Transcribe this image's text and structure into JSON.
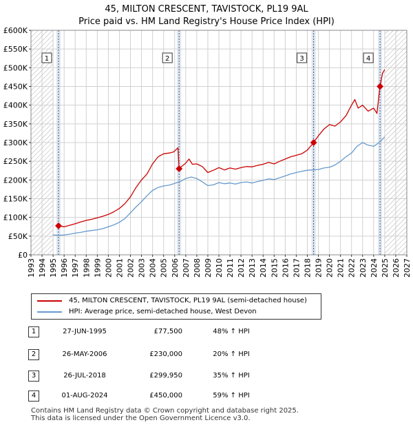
{
  "header": {
    "title_line1": "45, MILTON CRESCENT, TAVISTOCK, PL19 9AL",
    "title_line2": "Price paid vs. HM Land Registry's House Price Index (HPI)"
  },
  "legend": {
    "red_label": "45, MILTON CRESCENT, TAVISTOCK, PL19 9AL (semi-detached house)",
    "blue_label": "HPI: Average price, semi-detached house, West Devon"
  },
  "colors": {
    "red": "#cc0000",
    "blue": "#6699cc",
    "sale_shade": "#dde6f4",
    "grid": "#d0d0d0",
    "hatch": "#aaaaaa"
  },
  "sales": [
    {
      "num": "1",
      "date": "27-JUN-1995",
      "price": "£77,500",
      "hpi": "48% ↑ HPI",
      "t": 1995.49,
      "value": 77500
    },
    {
      "num": "2",
      "date": "26-MAY-2006",
      "price": "£230,000",
      "hpi": "20% ↑ HPI",
      "t": 2006.4,
      "value": 230000
    },
    {
      "num": "3",
      "date": "26-JUL-2018",
      "price": "£299,950",
      "hpi": "35% ↑ HPI",
      "t": 2018.57,
      "value": 299950
    },
    {
      "num": "4",
      "date": "01-AUG-2024",
      "price": "£450,000",
      "hpi": "59% ↑ HPI",
      "t": 2024.58,
      "value": 450000
    }
  ],
  "footer": {
    "line1": "Contains HM Land Registry data © Crown copyright and database right 2025.",
    "line2": "This data is licensed under the Open Government Licence v3.0."
  },
  "chart_data": {
    "type": "line",
    "title": "45, MILTON CRESCENT, TAVISTOCK, PL19 9AL",
    "subtitle": "Price paid vs. HM Land Registry's House Price Index (HPI)",
    "xlim": [
      1993,
      2027
    ],
    "ylim": [
      0,
      600000
    ],
    "x_ticks": [
      "1993",
      "1994",
      "1995",
      "1996",
      "1997",
      "1998",
      "1999",
      "2000",
      "2001",
      "2002",
      "2003",
      "2004",
      "2005",
      "2006",
      "2007",
      "2008",
      "2009",
      "2010",
      "2011",
      "2012",
      "2013",
      "2014",
      "2015",
      "2016",
      "2017",
      "2018",
      "2019",
      "2020",
      "2021",
      "2022",
      "2023",
      "2024",
      "2025",
      "2026",
      "2027"
    ],
    "y_ticks": [
      0,
      50000,
      100000,
      150000,
      200000,
      250000,
      300000,
      350000,
      400000,
      450000,
      500000,
      550000,
      600000
    ],
    "y_tick_labels": [
      "£0",
      "£50K",
      "£100K",
      "£150K",
      "£200K",
      "£250K",
      "£300K",
      "£350K",
      "£400K",
      "£450K",
      "£500K",
      "£550K",
      "£600K"
    ],
    "hatched_before": 1995.0,
    "hatched_after": 2025.0,
    "series": [
      {
        "name": "45, MILTON CRESCENT, TAVISTOCK, PL19 9AL (semi-detached house)",
        "color": "#cc0000",
        "x": [
          1995.49,
          1996.0,
          1996.5,
          1997.0,
          1997.5,
          1998.0,
          1998.5,
          1999.0,
          1999.5,
          2000.0,
          2000.5,
          2001.0,
          2001.5,
          2002.0,
          2002.5,
          2003.0,
          2003.5,
          2004.0,
          2004.5,
          2005.0,
          2005.5,
          2005.9,
          2006.3,
          2006.4,
          2006.5,
          2007.0,
          2007.3,
          2007.6,
          2008.0,
          2008.5,
          2009.0,
          2009.5,
          2010.0,
          2010.5,
          2011.0,
          2011.5,
          2012.0,
          2012.5,
          2013.0,
          2013.5,
          2014.0,
          2014.5,
          2015.0,
          2015.5,
          2016.0,
          2016.5,
          2017.0,
          2017.5,
          2018.0,
          2018.57,
          2019.0,
          2019.5,
          2020.0,
          2020.5,
          2021.0,
          2021.5,
          2022.0,
          2022.3,
          2022.6,
          2023.0,
          2023.5,
          2024.0,
          2024.3,
          2024.58,
          2024.8,
          2025.0
        ],
        "values": [
          77500,
          75000,
          79000,
          83000,
          88000,
          92000,
          95000,
          99000,
          103000,
          108000,
          115000,
          124000,
          137000,
          155000,
          180000,
          200000,
          216000,
          243000,
          262000,
          270000,
          272000,
          275000,
          286000,
          230000,
          233000,
          245000,
          256000,
          242000,
          243000,
          236000,
          220000,
          226000,
          233000,
          227000,
          232000,
          229000,
          233000,
          236000,
          235000,
          239000,
          242000,
          247000,
          243000,
          250000,
          256000,
          262000,
          266000,
          270000,
          280000,
          299950,
          318000,
          336000,
          348000,
          344000,
          355000,
          372000,
          400000,
          415000,
          392000,
          400000,
          384000,
          392000,
          378000,
          450000,
          485000,
          495000
        ]
      },
      {
        "name": "HPI: Average price, semi-detached house, West Devon",
        "color": "#6699cc",
        "x": [
          1995.0,
          1995.5,
          1996.0,
          1996.5,
          1997.0,
          1997.5,
          1998.0,
          1998.5,
          1999.0,
          1999.5,
          2000.0,
          2000.5,
          2001.0,
          2001.5,
          2002.0,
          2002.5,
          2003.0,
          2003.5,
          2004.0,
          2004.5,
          2005.0,
          2005.5,
          2006.0,
          2006.5,
          2007.0,
          2007.5,
          2008.0,
          2008.5,
          2009.0,
          2009.5,
          2010.0,
          2010.5,
          2011.0,
          2011.5,
          2012.0,
          2012.5,
          2013.0,
          2013.5,
          2014.0,
          2014.5,
          2015.0,
          2015.5,
          2016.0,
          2016.5,
          2017.0,
          2017.5,
          2018.0,
          2018.5,
          2019.0,
          2019.5,
          2020.0,
          2020.5,
          2021.0,
          2021.5,
          2022.0,
          2022.5,
          2023.0,
          2023.5,
          2024.0,
          2024.5,
          2025.0
        ],
        "values": [
          53000,
          52000,
          53000,
          55000,
          58000,
          60000,
          63000,
          65000,
          67000,
          70000,
          75000,
          80000,
          87000,
          97000,
          112000,
          128000,
          142000,
          158000,
          172000,
          180000,
          184000,
          186000,
          191000,
          196000,
          204000,
          208000,
          204000,
          195000,
          185000,
          187000,
          193000,
          190000,
          192000,
          189000,
          193000,
          195000,
          192000,
          196000,
          199000,
          203000,
          201000,
          206000,
          211000,
          216000,
          220000,
          223000,
          226000,
          227000,
          228000,
          232000,
          234000,
          240000,
          250000,
          262000,
          272000,
          290000,
          300000,
          293000,
          290000,
          300000,
          315000
        ]
      }
    ]
  }
}
